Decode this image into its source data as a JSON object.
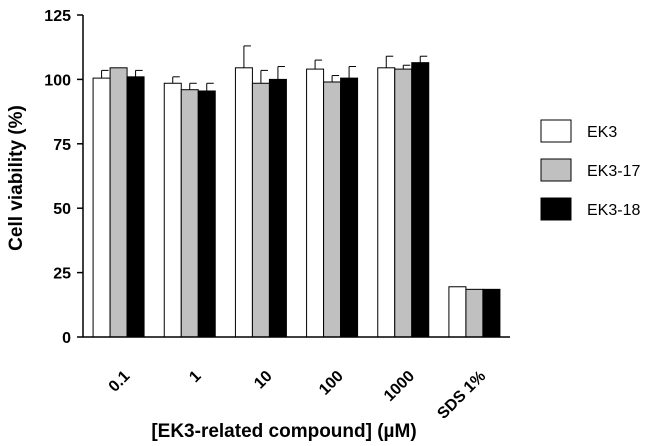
{
  "chart_data": {
    "type": "bar",
    "title": "",
    "xlabel": "[EK3-related compound] (µM)",
    "ylabel": "Cell viability (%)",
    "ylim": [
      0,
      125
    ],
    "yticks": [
      "0",
      "25",
      "50",
      "75",
      "100",
      "125"
    ],
    "categories": [
      "0.1",
      "1",
      "10",
      "100",
      "1000",
      "SDS 1%"
    ],
    "grid": false,
    "legend_position": "right",
    "series": [
      {
        "name": "EK3",
        "color": "#ffffff",
        "values": [
          100.5,
          98.5,
          104.5,
          104,
          104.5,
          19.5
        ],
        "errors": [
          3,
          2.5,
          8.5,
          3.5,
          4.5,
          0
        ]
      },
      {
        "name": "EK3-17",
        "color": "#c0c0c0",
        "values": [
          104.5,
          96,
          98.5,
          99,
          104,
          18.5
        ],
        "errors": [
          0,
          2.5,
          5,
          2.5,
          1.5,
          0
        ]
      },
      {
        "name": "EK3-18",
        "color": "#000000",
        "values": [
          101,
          95.5,
          100,
          100.5,
          106.5,
          18.5
        ],
        "errors": [
          2.5,
          3,
          5,
          4.5,
          2.5,
          0
        ]
      }
    ]
  }
}
